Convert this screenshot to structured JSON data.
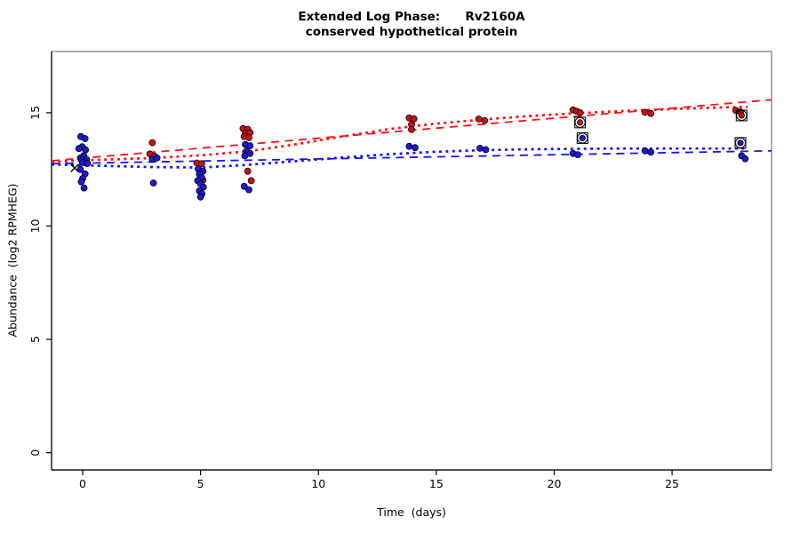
{
  "figure": {
    "title_line1": "Extended Log Phase:      Rv2160A",
    "title_line2": "conserved hypothetical protein"
  },
  "chart_data": {
    "type": "scatter",
    "title": "Extended Log Phase: Rv2160A",
    "subtitle": "conserved hypothetical protein",
    "xlabel": "Time  (days)",
    "ylabel": "Abundance  (log2 RPMHEG)",
    "xlim": [
      -1.32,
      29.22
    ],
    "ylim": [
      -0.76,
      17.7
    ],
    "xticks": [
      0,
      5,
      10,
      15,
      20,
      25
    ],
    "yticks": [
      0,
      5,
      10,
      15
    ],
    "grid": false,
    "legend": "none",
    "colors": {
      "red_point_fill": "#c41414",
      "red_point_stroke": "#1a0000",
      "blue_point_fill": "#1c1ccd",
      "blue_point_stroke": "#000022",
      "red_line": "#ff1111",
      "blue_line": "#1414ff",
      "box": "#848484",
      "axis": "#000000",
      "flag_ring": "#111111"
    },
    "series": [
      {
        "name": "red-condition",
        "color": "#c41414",
        "points": [
          [
            2.95,
            13.68
          ],
          [
            2.85,
            13.18
          ],
          [
            3.05,
            13.08
          ],
          [
            4.85,
            12.78
          ],
          [
            5.05,
            12.75
          ],
          [
            5.1,
            12.02
          ],
          [
            6.8,
            14.3
          ],
          [
            7.0,
            14.27
          ],
          [
            6.9,
            14.1
          ],
          [
            7.1,
            14.12
          ],
          [
            6.85,
            13.95
          ],
          [
            7.05,
            13.9
          ],
          [
            7.0,
            12.42
          ],
          [
            7.15,
            12.0
          ],
          [
            13.85,
            14.77
          ],
          [
            14.05,
            14.73
          ],
          [
            13.95,
            14.48
          ],
          [
            13.95,
            14.26
          ],
          [
            16.8,
            14.72
          ],
          [
            17.05,
            14.66
          ],
          [
            20.8,
            15.12
          ],
          [
            20.95,
            15.07
          ],
          [
            21.1,
            15.0
          ],
          [
            23.85,
            15.02
          ],
          [
            24.1,
            14.97
          ],
          [
            27.7,
            15.1
          ],
          [
            27.9,
            15.04
          ]
        ]
      },
      {
        "name": "blue-condition",
        "color": "#1c1ccd",
        "points": [
          [
            -0.08,
            13.95
          ],
          [
            0.1,
            13.86
          ],
          [
            -0.02,
            13.5
          ],
          [
            -0.16,
            13.42
          ],
          [
            0.12,
            13.36
          ],
          [
            0.04,
            13.1
          ],
          [
            -0.1,
            13.0
          ],
          [
            0.16,
            12.94
          ],
          [
            -0.04,
            12.9
          ],
          [
            0.0,
            12.8
          ],
          [
            0.2,
            12.76
          ],
          [
            -0.1,
            12.5
          ],
          [
            0.1,
            12.3
          ],
          [
            0.0,
            12.1
          ],
          [
            -0.06,
            11.95
          ],
          [
            0.06,
            11.68
          ],
          [
            2.95,
            12.95
          ],
          [
            3.15,
            13.0
          ],
          [
            3.0,
            11.9
          ],
          [
            4.9,
            12.52
          ],
          [
            5.1,
            12.42
          ],
          [
            4.95,
            12.28
          ],
          [
            5.05,
            12.14
          ],
          [
            4.88,
            12.0
          ],
          [
            5.0,
            11.86
          ],
          [
            5.12,
            11.72
          ],
          [
            4.95,
            11.55
          ],
          [
            5.06,
            11.42
          ],
          [
            5.0,
            11.28
          ],
          [
            6.9,
            13.6
          ],
          [
            7.1,
            13.54
          ],
          [
            6.95,
            13.3
          ],
          [
            7.1,
            13.2
          ],
          [
            6.88,
            13.1
          ],
          [
            6.85,
            11.75
          ],
          [
            7.05,
            11.6
          ],
          [
            13.85,
            13.52
          ],
          [
            14.1,
            13.46
          ],
          [
            16.85,
            13.43
          ],
          [
            17.1,
            13.37
          ],
          [
            20.8,
            13.2
          ],
          [
            21.0,
            13.15
          ],
          [
            23.85,
            13.32
          ],
          [
            24.1,
            13.26
          ],
          [
            27.95,
            13.1
          ],
          [
            28.1,
            12.97
          ]
        ]
      }
    ],
    "fit_lines": [
      {
        "name": "red-linear-fit",
        "style": "longdash",
        "color": "#ff1111",
        "points": [
          [
            -1.32,
            12.88
          ],
          [
            29.22,
            15.57
          ]
        ]
      },
      {
        "name": "red-smooth-fit",
        "style": "dotted",
        "color": "#ff1111",
        "points": [
          [
            -1.32,
            12.82
          ],
          [
            0,
            12.9
          ],
          [
            3,
            13.0
          ],
          [
            5,
            13.12
          ],
          [
            7,
            13.3
          ],
          [
            9,
            13.6
          ],
          [
            11,
            13.95
          ],
          [
            13,
            14.28
          ],
          [
            15,
            14.52
          ],
          [
            17,
            14.7
          ],
          [
            19,
            14.86
          ],
          [
            21,
            14.98
          ],
          [
            23,
            15.08
          ],
          [
            25,
            15.16
          ],
          [
            27,
            15.23
          ],
          [
            28.2,
            15.26
          ]
        ]
      },
      {
        "name": "blue-linear-fit",
        "style": "longdash",
        "color": "#1414ff",
        "points": [
          [
            -1.32,
            12.75
          ],
          [
            29.22,
            13.32
          ]
        ]
      },
      {
        "name": "blue-smooth-fit",
        "style": "dotted",
        "color": "#1414ff",
        "points": [
          [
            -1.32,
            12.72
          ],
          [
            0,
            12.68
          ],
          [
            3,
            12.6
          ],
          [
            5,
            12.58
          ],
          [
            7,
            12.7
          ],
          [
            9,
            12.86
          ],
          [
            11,
            13.02
          ],
          [
            13,
            13.17
          ],
          [
            15,
            13.28
          ],
          [
            17,
            13.35
          ],
          [
            19,
            13.39
          ],
          [
            21,
            13.41
          ],
          [
            23,
            13.42
          ],
          [
            25,
            13.42
          ],
          [
            27,
            13.42
          ],
          [
            28.2,
            13.42
          ]
        ]
      }
    ],
    "flagged_points": [
      {
        "series": "red-condition",
        "color": "#c41414",
        "x": 21.1,
        "y": 14.57
      },
      {
        "series": "blue-condition",
        "color": "#1c1ccd",
        "x": 21.2,
        "y": 13.88
      },
      {
        "series": "red-condition",
        "color": "#c41414",
        "x": 27.95,
        "y": 14.88
      },
      {
        "series": "blue-condition",
        "color": "#1c1ccd",
        "x": 27.9,
        "y": 13.67
      }
    ],
    "x_marker": {
      "x": -0.34,
      "y": 12.56
    }
  }
}
